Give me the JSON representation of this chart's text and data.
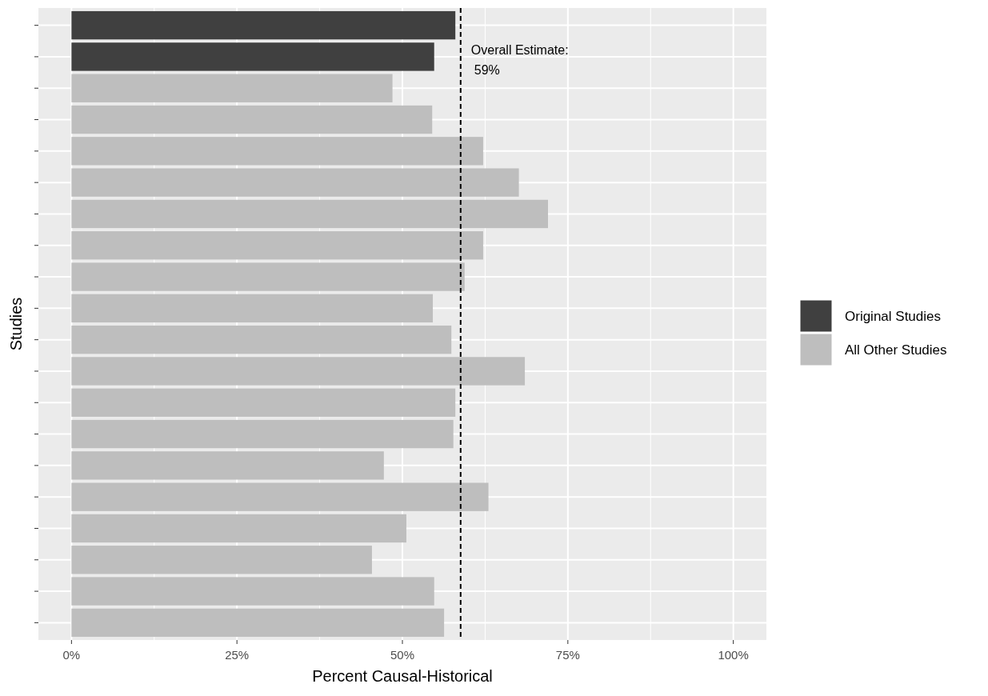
{
  "chart_data": {
    "type": "bar",
    "orientation": "horizontal",
    "xlabel": "Percent Causal-Historical",
    "ylabel": "Studies",
    "categories": [
      null,
      null,
      null,
      null,
      null,
      null,
      null,
      null,
      null,
      null,
      null,
      null,
      null,
      null,
      null,
      null,
      null,
      null,
      null,
      null
    ],
    "series": [
      {
        "name": "Original Studies",
        "color": "#404040",
        "values": [
          58.0,
          54.8,
          null,
          null,
          null,
          null,
          null,
          null,
          null,
          null,
          null,
          null,
          null,
          null,
          null,
          null,
          null,
          null,
          null,
          null
        ]
      },
      {
        "name": "All Other Studies",
        "color": "#bebebe",
        "values": [
          null,
          null,
          48.5,
          54.5,
          62.2,
          67.6,
          72.0,
          62.2,
          59.4,
          54.6,
          57.4,
          68.5,
          58.0,
          57.7,
          47.2,
          63.0,
          50.6,
          45.4,
          54.8,
          56.3
        ]
      }
    ],
    "xlim": [
      -5,
      105
    ],
    "xticks": [
      {
        "value": 0,
        "label": "0%"
      },
      {
        "value": 25,
        "label": "25%"
      },
      {
        "value": 50,
        "label": "50%"
      },
      {
        "value": 75,
        "label": "75%"
      },
      {
        "value": 100,
        "label": "100%"
      }
    ],
    "ref_lines": [
      {
        "axis": "x",
        "value": 58.8,
        "label": "Overall Estimate:\n59%",
        "line_style": "dashed",
        "color": "#000000"
      }
    ],
    "grid": true,
    "legend": "right",
    "tick_labels": "x"
  }
}
